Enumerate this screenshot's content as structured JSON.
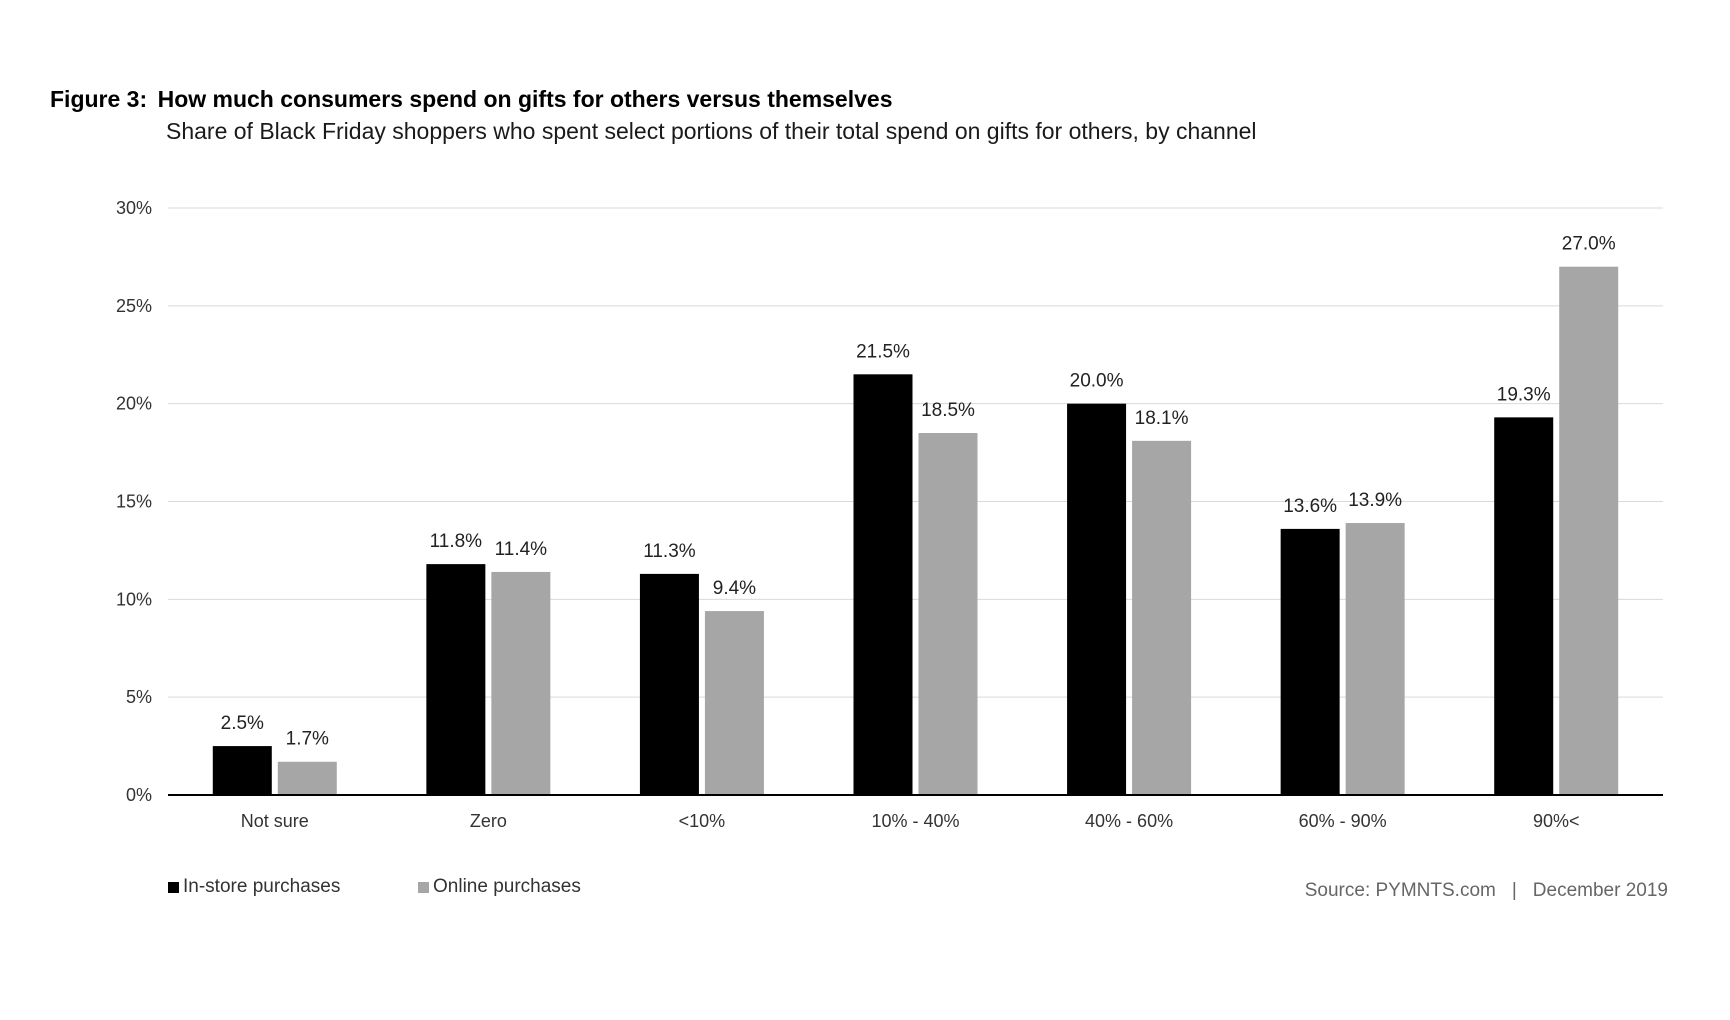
{
  "figure_label": "Figure 3:",
  "title": "How much consumers spend on gifts for others versus themselves",
  "subtitle": "Share of Black Friday shoppers who spent select portions of their total spend on gifts for others, by channel",
  "source": "Source: PYMNTS.com",
  "source_separator": "|",
  "date": "December 2019",
  "colors": {
    "in_store": "#000000",
    "online": "#a6a6a6",
    "grid": "#d9d9d9",
    "axis": "#000000"
  },
  "chart_data": {
    "type": "bar",
    "title": "How much consumers spend on gifts for others versus themselves",
    "xlabel": "",
    "ylabel": "",
    "ylim": [
      0,
      30
    ],
    "yticks": [
      0,
      5,
      10,
      15,
      20,
      25,
      30
    ],
    "ytick_labels": [
      "0%",
      "5%",
      "10%",
      "15%",
      "20%",
      "25%",
      "30%"
    ],
    "grid": true,
    "legend_position": "bottom-left",
    "categories": [
      "Not sure",
      "Zero",
      "<10%",
      "10% - 40%",
      "40% - 60%",
      "60% - 90%",
      "90%<"
    ],
    "series": [
      {
        "name": "In-store purchases",
        "color": "#000000",
        "values": [
          2.5,
          11.8,
          11.3,
          21.5,
          20.0,
          13.6,
          19.3
        ],
        "labels": [
          "2.5%",
          "11.8%",
          "11.3%",
          "21.5%",
          "20.0%",
          "13.6%",
          "19.3%"
        ]
      },
      {
        "name": "Online purchases",
        "color": "#a6a6a6",
        "values": [
          1.7,
          11.4,
          9.4,
          18.5,
          18.1,
          13.9,
          27.0
        ],
        "labels": [
          "1.7%",
          "11.4%",
          "9.4%",
          "18.5%",
          "18.1%",
          "13.9%",
          "27.0%"
        ]
      }
    ]
  }
}
